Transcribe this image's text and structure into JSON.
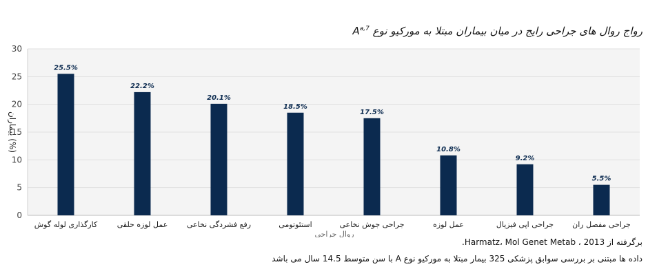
{
  "chart_data": {
    "type": "bar",
    "title": "رواج روال های جراحی رایج در میان بیماران مبتلا به مورکیو نوع A",
    "title_superscript": "a,7",
    "xlabel": "روال جراحی",
    "ylabel": "بیماران (%)",
    "ylim": [
      0,
      30
    ],
    "yticks": [
      0,
      5,
      10,
      15,
      20,
      25,
      30
    ],
    "grid": true,
    "legend": "none",
    "bar_color": "#0b2a4f",
    "categories": [
      "کارگذاری لوله گوش",
      "عمل لوزه حلقی",
      "رفع فشردگی نخاعی",
      "استئوتومی",
      "جراحی جوش نخاعی",
      "عمل لوزه",
      "جراحی اپی فیزیال",
      "جراحی مفصل ران"
    ],
    "values": [
      25.5,
      22.2,
      20.1,
      18.5,
      17.5,
      10.8,
      9.2,
      5.5
    ],
    "data_labels": [
      "25.5%",
      "22.2%",
      "20.1%",
      "18.5%",
      "17.5%",
      "10.8%",
      "9.2%",
      "5.5%"
    ]
  },
  "footer": {
    "source": "برگرفته از Harmatz، Mol Genet Metab ، 2013.",
    "note": "داده ها مبتنی بر بررسی سوابق پزشکی 325 بیمار مبتلا به مورکیو نوع A با سن متوسط 14.5 سال می باشد"
  }
}
